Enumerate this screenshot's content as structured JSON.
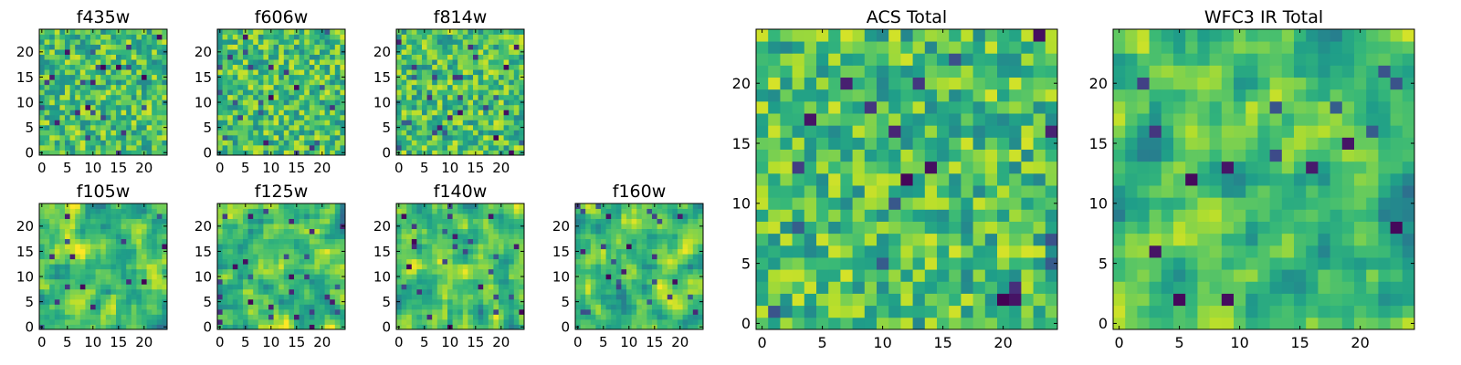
{
  "chart_data": [
    {
      "type": "heatmap",
      "title": "f435w",
      "colormap": "viridis",
      "grid_size": 25,
      "xlim": [
        -0.5,
        24.5
      ],
      "ylim": [
        -0.5,
        24.5
      ],
      "x_ticks": [
        0,
        5,
        10,
        15,
        20
      ],
      "y_ticks": [
        0,
        5,
        10,
        15,
        20
      ],
      "seed": 11,
      "smoothness": 0
    },
    {
      "type": "heatmap",
      "title": "f606w",
      "colormap": "viridis",
      "grid_size": 25,
      "xlim": [
        -0.5,
        24.5
      ],
      "ylim": [
        -0.5,
        24.5
      ],
      "x_ticks": [
        0,
        5,
        10,
        15,
        20
      ],
      "y_ticks": [
        0,
        5,
        10,
        15,
        20
      ],
      "seed": 23,
      "smoothness": 0
    },
    {
      "type": "heatmap",
      "title": "f814w",
      "colormap": "viridis",
      "grid_size": 25,
      "xlim": [
        -0.5,
        24.5
      ],
      "ylim": [
        -0.5,
        24.5
      ],
      "x_ticks": [
        0,
        5,
        10,
        15,
        20
      ],
      "y_ticks": [
        0,
        5,
        10,
        15,
        20
      ],
      "seed": 37,
      "smoothness": 0
    },
    {
      "type": "heatmap",
      "title": "f105w",
      "colormap": "viridis",
      "grid_size": 25,
      "xlim": [
        -0.5,
        24.5
      ],
      "ylim": [
        -0.5,
        24.5
      ],
      "x_ticks": [
        0,
        5,
        10,
        15,
        20
      ],
      "y_ticks": [
        0,
        5,
        10,
        15,
        20
      ],
      "seed": 41,
      "smoothness": 1
    },
    {
      "type": "heatmap",
      "title": "f125w",
      "colormap": "viridis",
      "grid_size": 25,
      "xlim": [
        -0.5,
        24.5
      ],
      "ylim": [
        -0.5,
        24.5
      ],
      "x_ticks": [
        0,
        5,
        10,
        15,
        20
      ],
      "y_ticks": [
        0,
        5,
        10,
        15,
        20
      ],
      "seed": 53,
      "smoothness": 1
    },
    {
      "type": "heatmap",
      "title": "f140w",
      "colormap": "viridis",
      "grid_size": 25,
      "xlim": [
        -0.5,
        24.5
      ],
      "ylim": [
        -0.5,
        24.5
      ],
      "x_ticks": [
        0,
        5,
        10,
        15,
        20
      ],
      "y_ticks": [
        0,
        5,
        10,
        15,
        20
      ],
      "seed": 67,
      "smoothness": 1
    },
    {
      "type": "heatmap",
      "title": "f160w",
      "colormap": "viridis",
      "grid_size": 25,
      "xlim": [
        -0.5,
        24.5
      ],
      "ylim": [
        -0.5,
        24.5
      ],
      "x_ticks": [
        0,
        5,
        10,
        15,
        20
      ],
      "y_ticks": [
        0,
        5,
        10,
        15,
        20
      ],
      "seed": 79,
      "smoothness": 1
    },
    {
      "type": "heatmap",
      "title": "ACS Total",
      "colormap": "viridis",
      "grid_size": 25,
      "xlim": [
        -0.5,
        24.5
      ],
      "ylim": [
        -0.5,
        24.5
      ],
      "x_ticks": [
        0,
        5,
        10,
        15,
        20
      ],
      "y_ticks": [
        0,
        5,
        10,
        15,
        20
      ],
      "seed": 97,
      "smoothness": 0
    },
    {
      "type": "heatmap",
      "title": "WFC3 IR Total",
      "colormap": "viridis",
      "grid_size": 25,
      "xlim": [
        -0.5,
        24.5
      ],
      "ylim": [
        -0.5,
        24.5
      ],
      "x_ticks": [
        0,
        5,
        10,
        15,
        20
      ],
      "y_ticks": [
        0,
        5,
        10,
        15,
        20
      ],
      "seed": 113,
      "smoothness": 1
    }
  ]
}
